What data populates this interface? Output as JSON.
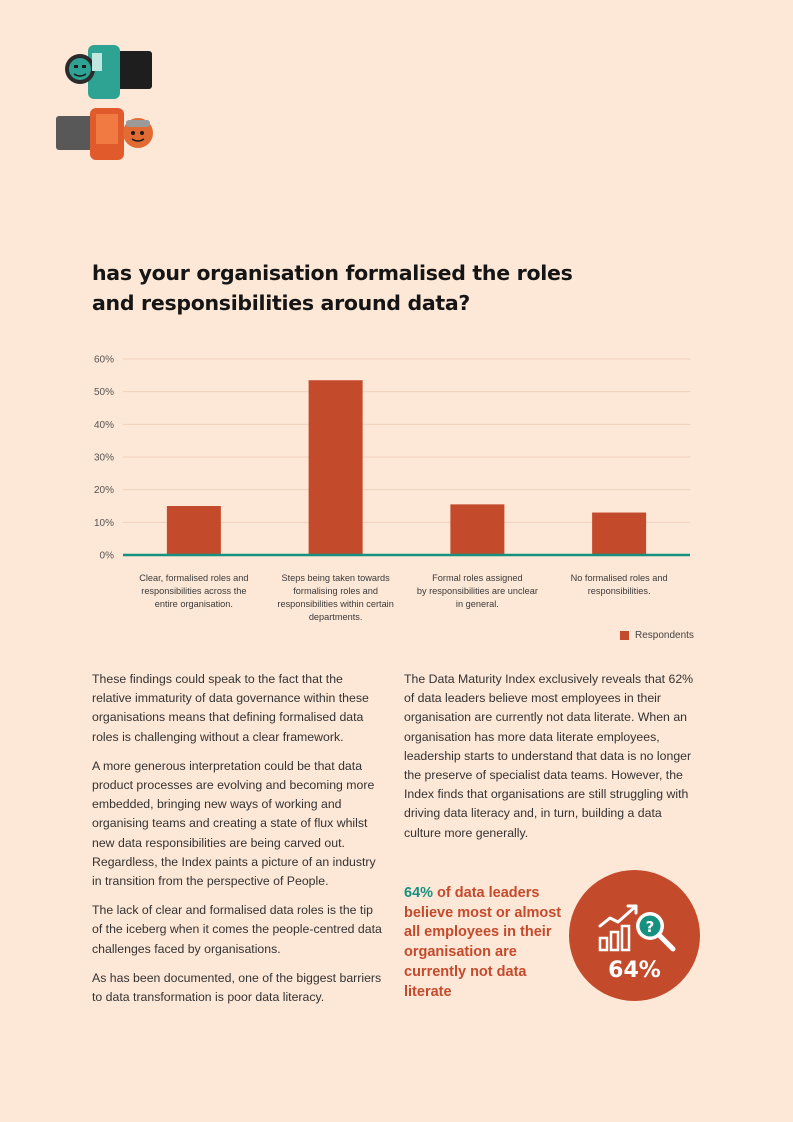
{
  "headline": "has your organisation formalised the roles and responsibilities around data?",
  "colors": {
    "background": "#fde7d6",
    "bar": "#c44a2c",
    "baseline": "#16907f",
    "grid": "#f0d0bd",
    "teal": "#16907f",
    "orange": "#c44a2c"
  },
  "chart_data": {
    "type": "bar",
    "title": "",
    "xlabel": "",
    "ylabel": "",
    "ylim": [
      0,
      60
    ],
    "yticks": [
      "0%",
      "10%",
      "20%",
      "30%",
      "40%",
      "50%",
      "60%"
    ],
    "ytick_values": [
      0,
      10,
      20,
      30,
      40,
      50,
      60
    ],
    "grid": true,
    "legend_position": "bottom-right",
    "categories": [
      [
        "Clear, formalised roles and",
        "responsibilities across the",
        "entire organisation."
      ],
      [
        "Steps being taken towards",
        "formalising roles and",
        "responsibilities within certain",
        "departments."
      ],
      [
        "Formal roles assigned",
        "by responsibilities are unclear",
        "in general."
      ],
      [
        "No formalised roles and",
        "responsibilities."
      ]
    ],
    "series": [
      {
        "name": "Respondents",
        "values": [
          15,
          53.5,
          15.5,
          13
        ]
      }
    ]
  },
  "legend": {
    "label": "Respondents"
  },
  "left_column": [
    "These findings could speak to the fact that the relative immaturity of data governance within these organisations means that defining formalised data roles is challenging without a clear framework.",
    "A more generous interpretation could be that data product processes are evolving and becoming more embedded, bringing new ways of working and organising teams and creating a state of flux whilst new data responsibilities are being carved out. Regardless, the Index paints a picture of an industry in transition from the perspective of People.",
    "The lack of clear and formalised data roles is the tip of the iceberg when it comes the people-centred data challenges faced by organisations.",
    "As has been documented, one of the biggest barriers to data transformation is poor data literacy."
  ],
  "right_column": [
    "The Data Maturity Index exclusively reveals that 62% of data leaders believe most employees in their organisation are currently not data literate. When an organisation has more data literate employees, leadership starts to understand that data is no longer the preserve of specialist data teams. However, the Index finds that organisations are still struggling with driving data literacy and, in turn, building a data culture more generally."
  ],
  "callout": {
    "highlight": "64%",
    "text": " of data leaders believe most or almost all employees in their organisation are currently not data literate"
  },
  "stat_circle": {
    "value": "64%",
    "icon": "analytics-search-icon"
  }
}
